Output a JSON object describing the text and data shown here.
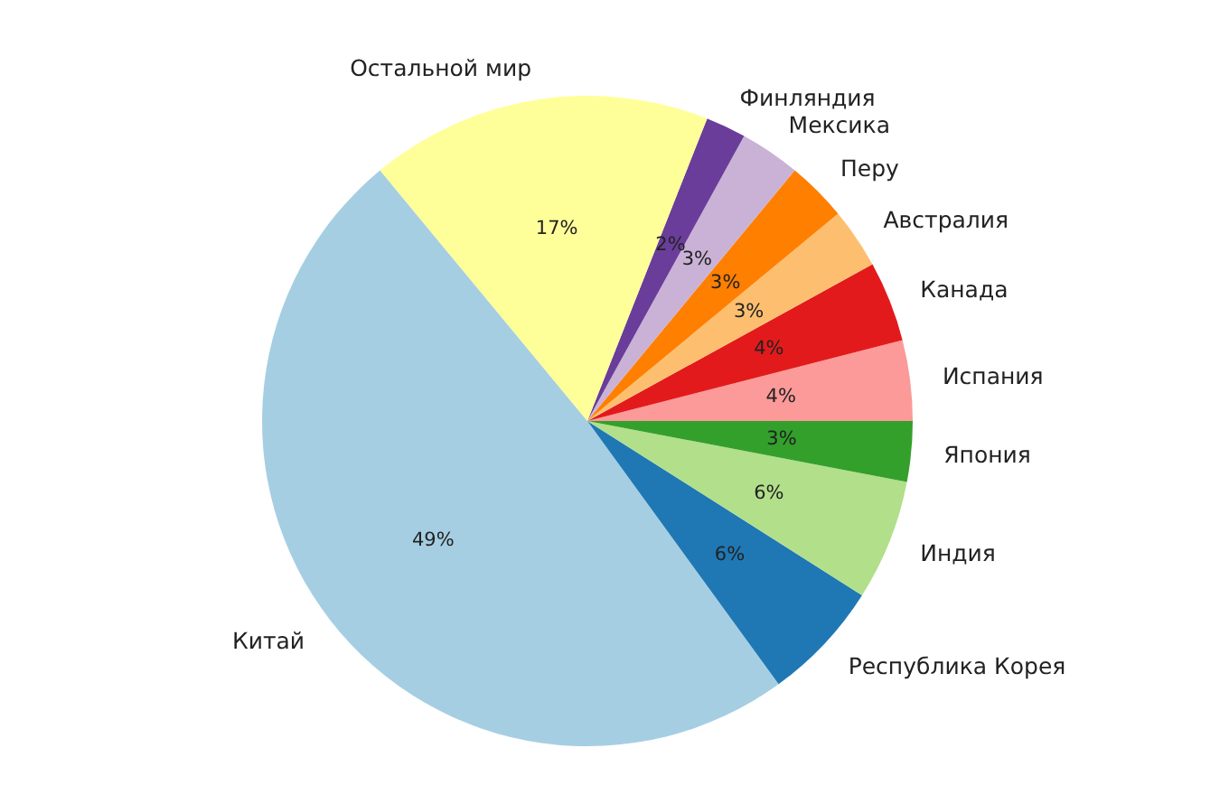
{
  "chart_data": {
    "type": "pie",
    "categories": [
      "Китай",
      "Республика Корея",
      "Индия",
      "Япония",
      "Испания",
      "Канада",
      "Австралия",
      "Перу",
      "Мексика",
      "Финляндия",
      "Остальной мир"
    ],
    "values": [
      49,
      6,
      6,
      3,
      4,
      4,
      3,
      3,
      3,
      2,
      17
    ],
    "value_labels": [
      "49%",
      "6%",
      "6%",
      "3%",
      "4%",
      "4%",
      "3%",
      "3%",
      "3%",
      "2%",
      "17%"
    ],
    "colors": [
      "#a6cee3",
      "#1f78b4",
      "#b2df8a",
      "#33a02c",
      "#fb9a99",
      "#e31a1c",
      "#fdbf6f",
      "#ff7f00",
      "#cab2d6",
      "#6a3d9a",
      "#ffff99"
    ],
    "legend": false
  }
}
